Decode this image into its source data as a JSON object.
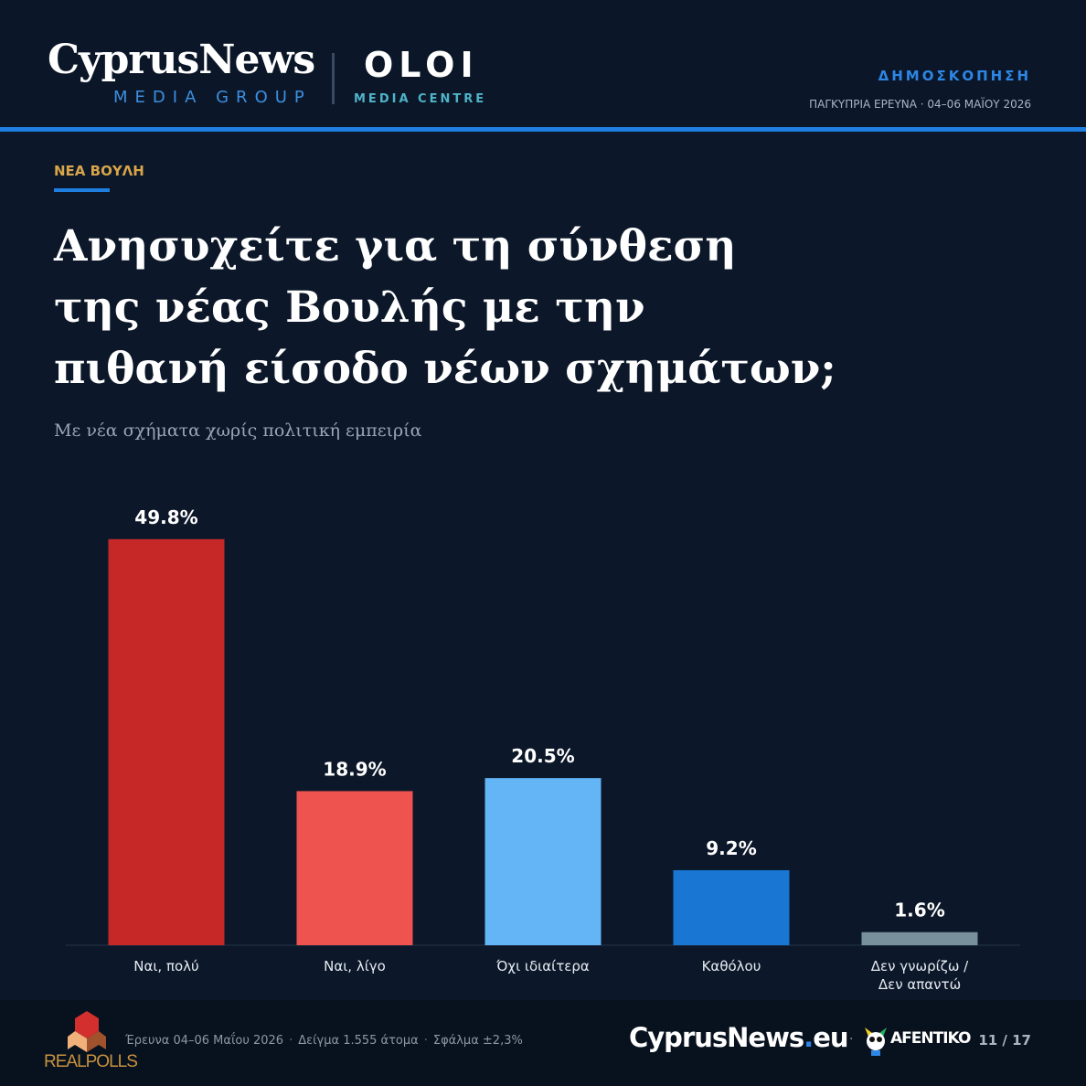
{
  "header": {
    "brand_main": "CyprusNews",
    "brand_sub": "MEDIA GROUP",
    "partner_main": "OLOI",
    "partner_sub": "MEDIA CENTRE",
    "kicker": "ΔΗΜΟΣΚΟΠΗΣΗ",
    "survey": "ΠΑΓΚΥΠΡΙΑ ΕΡΕΥΝΑ · 04–06 ΜΑΪΟΥ 2026"
  },
  "section": {
    "label": "ΝΕΑ ΒΟΥΛΗ",
    "title_lines": [
      "Ανησυχείτε για τη σύνθεση",
      "της νέας Βουλής με την",
      "πιθανή είσοδο νέων σχημάτων;"
    ],
    "subtitle": "Με νέα σχήματα χωρίς πολιτική εμπειρία"
  },
  "chart_data": {
    "type": "bar",
    "categories": [
      "Ναι, πολύ",
      "Ναι, λίγο",
      "Όχι ιδιαίτερα",
      "Καθόλου",
      "Δεν γνωρίζω /\nΔεν απαντώ"
    ],
    "values": [
      49.8,
      18.9,
      20.5,
      9.2,
      1.6
    ],
    "value_labels": [
      "49.8%",
      "18.9%",
      "20.5%",
      "9.2%",
      "1.6%"
    ],
    "colors": [
      "#c62828",
      "#ef5350",
      "#64b5f6",
      "#1976d2",
      "#78909c"
    ],
    "ylim": [
      0,
      50
    ],
    "grid": false,
    "legend": "none"
  },
  "footer": {
    "pollster": "REALPOLLS",
    "note_parts": [
      "Έρευνα 04–06 Μαΐου 2026",
      "Δείγμα 1.555 άτομα",
      "Σφάλμα ±2,3%"
    ],
    "site_name": "CyprusNews",
    "site_tld": "eu",
    "partner": "AFENTIKO",
    "page": "11 / 17"
  },
  "theme": {
    "background": "#0c1829",
    "accent": "#1f7fe0",
    "section_color": "#d9a54a"
  }
}
